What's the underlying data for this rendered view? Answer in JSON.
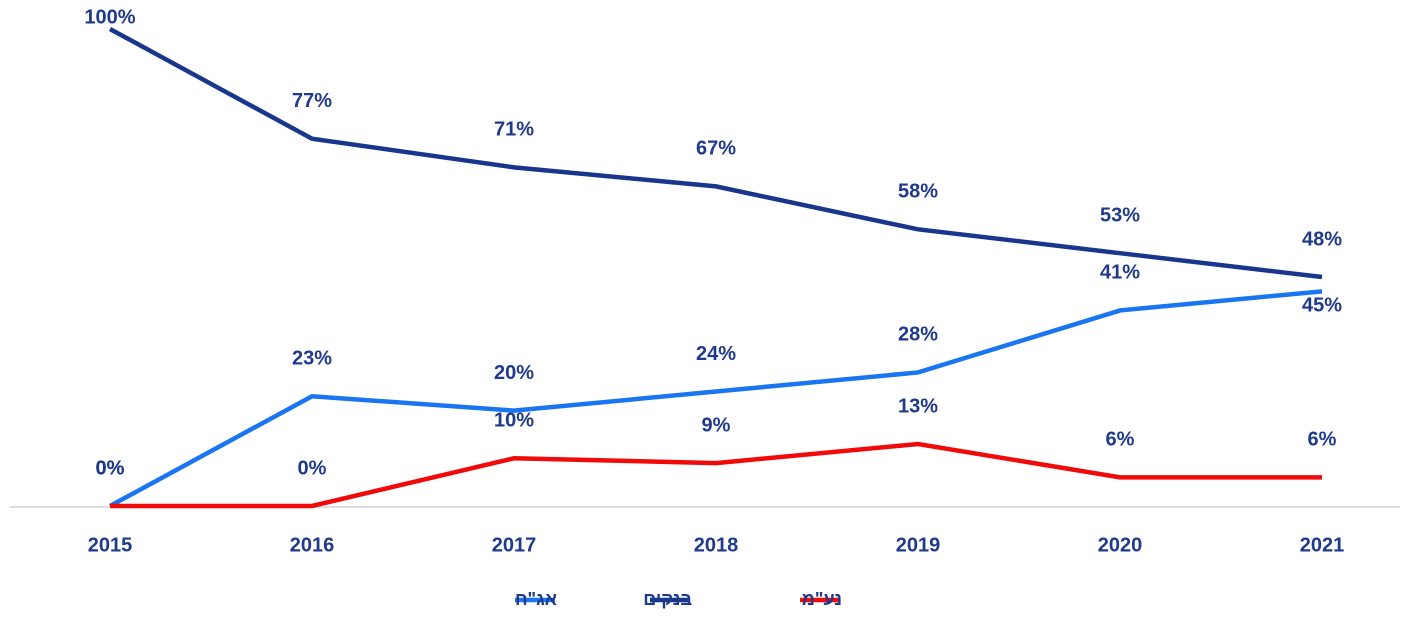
{
  "chart_data": {
    "type": "line",
    "categories": [
      "2015",
      "2016",
      "2017",
      "2018",
      "2019",
      "2020",
      "2021"
    ],
    "series": [
      {
        "name": "אג\"ח",
        "color": "#1a75f0",
        "values": [
          0,
          23,
          20,
          24,
          28,
          41,
          45
        ],
        "value_labels": [
          "0%",
          "23%",
          "20%",
          "24%",
          "28%",
          "41%",
          "45%"
        ]
      },
      {
        "name": "בנקים",
        "color": "#17368c",
        "values": [
          100,
          77,
          71,
          67,
          58,
          53,
          48
        ],
        "value_labels": [
          "100%",
          "77%",
          "71%",
          "67%",
          "58%",
          "53%",
          "48%"
        ]
      },
      {
        "name": "נע\"מ",
        "color": "#f00a0a",
        "values": [
          0,
          0,
          10,
          9,
          13,
          6,
          6
        ],
        "value_labels": [
          "0%",
          "0%",
          "10%",
          "9%",
          "13%",
          "6%",
          "6%"
        ]
      }
    ],
    "legend": "bottom"
  }
}
